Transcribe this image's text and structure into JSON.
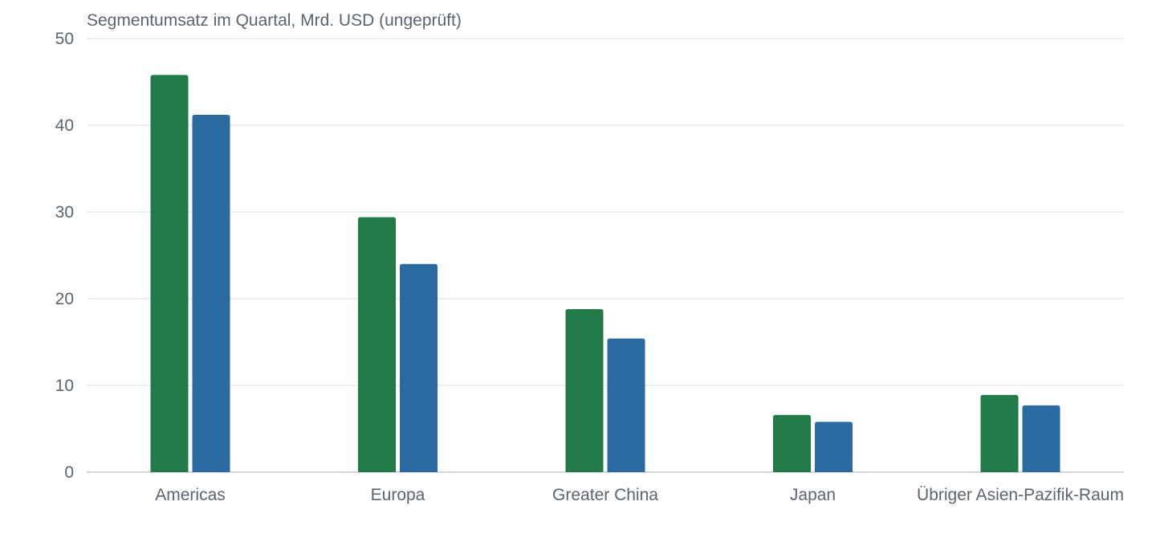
{
  "chart_data": {
    "type": "bar",
    "title": "Segmentumsatz im Quartal, Mrd. USD (ungeprüft)",
    "xlabel": "",
    "ylabel": "",
    "categories": [
      "Americas",
      "Europa",
      "Greater China",
      "Japan",
      "Übriger Asien-Pazifik-Raum"
    ],
    "series": [
      {
        "values": [
          45.8,
          29.4,
          18.8,
          6.6,
          8.9
        ],
        "color": "#217a47"
      },
      {
        "values": [
          41.2,
          24.0,
          15.4,
          5.8,
          7.7
        ],
        "color": "#2b6aa0"
      }
    ],
    "ylim": [
      0,
      50
    ],
    "yticks": [
      0,
      10,
      20,
      30,
      40,
      50
    ],
    "grid": true,
    "legend": "none"
  }
}
